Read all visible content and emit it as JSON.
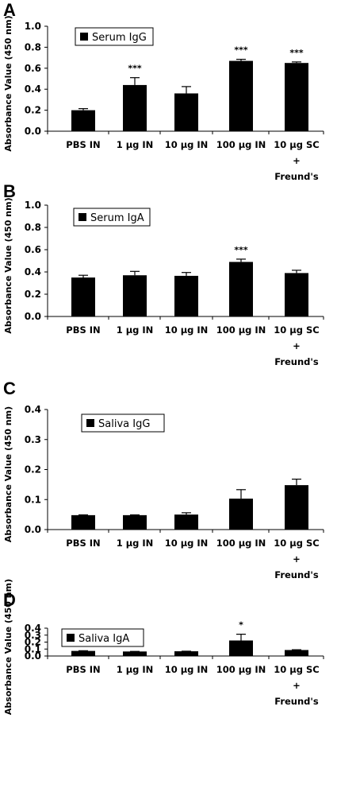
{
  "chart_data": [
    {
      "panel": "A",
      "type": "bar",
      "legend": "Serum IgG",
      "ylabel": "Absorbance Value (450 nm)",
      "ylim": [
        0,
        1.0
      ],
      "yticks": [
        "0.0",
        "0.2",
        "0.4",
        "0.6",
        "0.8",
        "1.0"
      ],
      "categories": [
        [
          "PBS IN"
        ],
        [
          "1 µg IN"
        ],
        [
          "10 µg IN"
        ],
        [
          "100 µg IN"
        ],
        [
          "10 µg SC",
          "+",
          "Freund's"
        ]
      ],
      "values": [
        0.2,
        0.44,
        0.36,
        0.67,
        0.65
      ],
      "errors": [
        0.015,
        0.07,
        0.065,
        0.015,
        0.01
      ],
      "annotations": [
        "",
        "***",
        "",
        "***",
        "***"
      ]
    },
    {
      "panel": "B",
      "type": "bar",
      "legend": "Serum IgA",
      "ylabel": "Absorbance Value (450 nm)",
      "ylim": [
        0,
        1.0
      ],
      "yticks": [
        "0.0",
        "0.2",
        "0.4",
        "0.6",
        "0.8",
        "1.0"
      ],
      "categories": [
        [
          "PBS IN"
        ],
        [
          "1 µg IN"
        ],
        [
          "10 µg IN"
        ],
        [
          "100 µg IN"
        ],
        [
          "10 µg SC",
          "+",
          "Freund's"
        ]
      ],
      "values": [
        0.35,
        0.37,
        0.365,
        0.49,
        0.39
      ],
      "errors": [
        0.02,
        0.035,
        0.03,
        0.025,
        0.025
      ],
      "annotations": [
        "",
        "",
        "",
        "***",
        ""
      ]
    },
    {
      "panel": "C",
      "type": "bar",
      "legend": "Saliva IgG",
      "ylabel": "Absorbance Value (450 nm)",
      "ylim": [
        0,
        0.4
      ],
      "yticks": [
        "0.0",
        "0.1",
        "0.2",
        "0.3",
        "0.4"
      ],
      "categories": [
        [
          "PBS IN"
        ],
        [
          "1 µg IN"
        ],
        [
          "10 µg IN"
        ],
        [
          "100 µg IN"
        ],
        [
          "10 µg SC",
          "+",
          "Freund's"
        ]
      ],
      "values": [
        0.048,
        0.048,
        0.05,
        0.103,
        0.148
      ],
      "errors": [
        0.001,
        0.001,
        0.006,
        0.03,
        0.02
      ],
      "annotations": [
        "",
        "",
        "",
        "",
        ""
      ]
    },
    {
      "panel": "D",
      "type": "bar",
      "legend": "Saliva IgA",
      "ylabel": "Absorbance Value (450 nm)",
      "ylim": [
        0,
        0.4
      ],
      "yticks": [
        "0.0",
        "0.1",
        "0.2",
        "0.3",
        "0.4"
      ],
      "categories": [
        [
          "PBS IN"
        ],
        [
          "1 µg IN"
        ],
        [
          "10 µg IN"
        ],
        [
          "100 µg IN"
        ],
        [
          "10 µg SC",
          "+",
          "Freund's"
        ]
      ],
      "values": [
        0.073,
        0.065,
        0.068,
        0.223,
        0.086
      ],
      "errors": [
        0.003,
        0.001,
        0.001,
        0.09,
        0.004
      ],
      "annotations": [
        "",
        "",
        "",
        "*",
        ""
      ]
    }
  ]
}
